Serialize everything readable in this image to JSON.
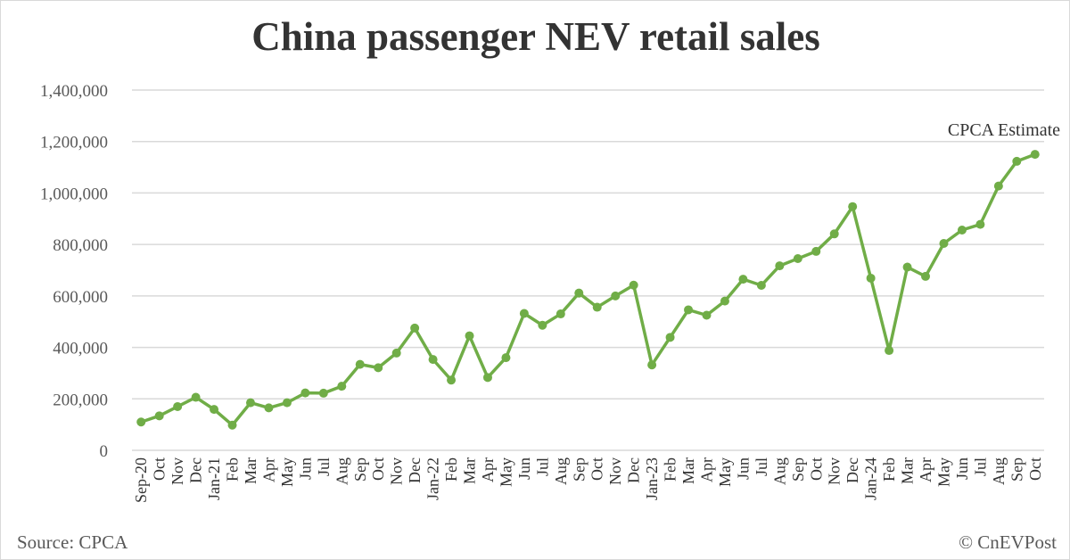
{
  "chart_data": {
    "type": "line",
    "title": "China passenger NEV retail sales",
    "xlabel": "",
    "ylabel": "",
    "ylim": [
      0,
      1400000
    ],
    "yticks": [
      "0",
      "200,000",
      "400,000",
      "600,000",
      "800,000",
      "1,000,000",
      "1,200,000",
      "1,400,000"
    ],
    "grid": true,
    "line_color": "#70ad47",
    "categories": [
      "Sep-20",
      "Oct",
      "Nov",
      "Dec",
      "Jan-21",
      "Feb",
      "Mar",
      "Apr",
      "May",
      "Jun",
      "Jul",
      "Aug",
      "Sep",
      "Oct",
      "Nov",
      "Dec",
      "Jan-22",
      "Feb",
      "Mar",
      "Apr",
      "May",
      "Jun",
      "Jul",
      "Aug",
      "Sep",
      "Oct",
      "Nov",
      "Dec",
      "Jan-23",
      "Feb",
      "Mar",
      "Apr",
      "May",
      "Jun",
      "Jul",
      "Aug",
      "Sep",
      "Oct",
      "Nov",
      "Dec",
      "Jan-24",
      "Feb",
      "Mar",
      "Apr",
      "May",
      "Jun",
      "Jul",
      "Aug",
      "Sep",
      "Oct"
    ],
    "values": [
      110000,
      134000,
      170000,
      206000,
      159000,
      98000,
      185000,
      165000,
      185000,
      223000,
      222000,
      249000,
      334000,
      321000,
      378000,
      475000,
      353000,
      273000,
      445000,
      283000,
      360000,
      532000,
      486000,
      530000,
      611000,
      556000,
      600000,
      642000,
      332000,
      439000,
      546000,
      525000,
      580000,
      665000,
      641000,
      717000,
      745000,
      773000,
      841000,
      947000,
      669000,
      388000,
      712000,
      676000,
      804000,
      856000,
      878000,
      1027000,
      1123000,
      1150000
    ],
    "annotation": "CPCA Estimate"
  },
  "footer": {
    "source": "Source: CPCA",
    "credit": "© CnEVPost"
  }
}
